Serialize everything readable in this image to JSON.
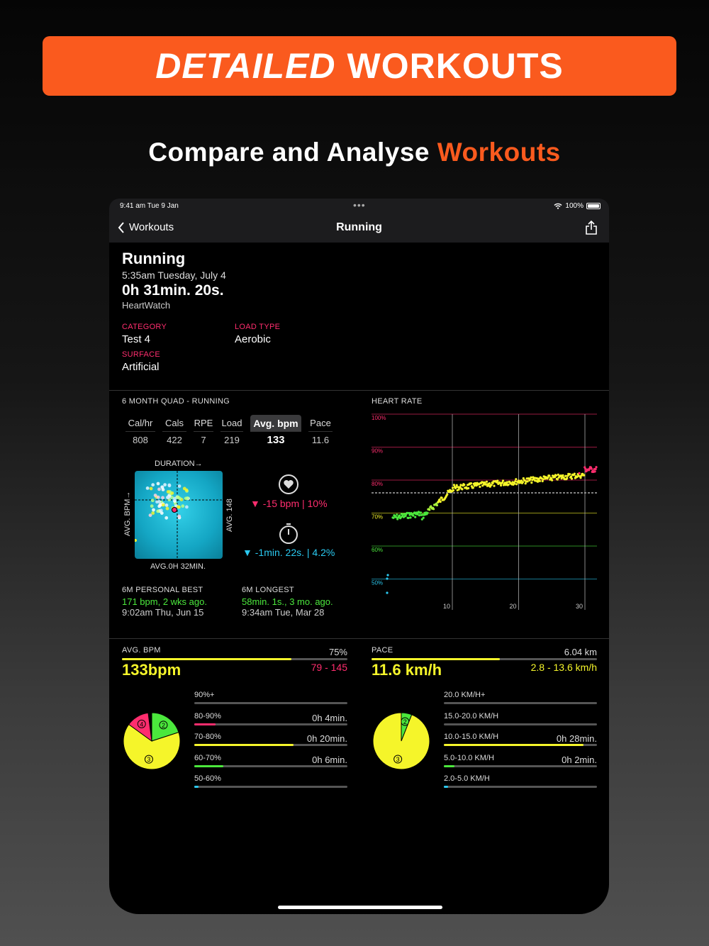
{
  "banner": {
    "italic": "DETAILED",
    "bold": "WORKOUTS"
  },
  "subtitle": {
    "main": "Compare and Analyse",
    "accent": "Workouts"
  },
  "status": {
    "time": "9:41 am  Tue 9 Jan",
    "battery": "100%"
  },
  "nav": {
    "back": "Workouts",
    "title": "Running"
  },
  "workout": {
    "title": "Running",
    "datetime": "5:35am Tuesday, July 4",
    "duration": "0h 31min. 20s.",
    "source": "HeartWatch",
    "category_label": "CATEGORY",
    "category": "Test 4",
    "load_type_label": "LOAD TYPE",
    "load_type": "Aerobic",
    "surface_label": "SURFACE",
    "surface": "Artificial"
  },
  "quad": {
    "title": "6 MONTH QUAD - RUNNING",
    "stats": [
      {
        "label": "Cal/hr",
        "value": "808"
      },
      {
        "label": "Cals",
        "value": "422"
      },
      {
        "label": "RPE",
        "value": "7"
      },
      {
        "label": "Load",
        "value": "219"
      },
      {
        "label": "Avg. bpm",
        "value": "133"
      },
      {
        "label": "Pace",
        "value": "11.6"
      }
    ],
    "duration_label": "DURATION→",
    "y_label": "AVG. BPM→",
    "right_label": "AVG. 148",
    "bottom_label": "AVG.0H 32MIN.",
    "bpm_delta": "▼ -15 bpm | 10%",
    "time_delta": "▼ -1min. 22s. | 4.2%",
    "best_label": "6M PERSONAL BEST",
    "best_value": "171 bpm, 2 wks ago.",
    "best_date": "9:02am Thu, Jun 15",
    "longest_label": "6M LONGEST",
    "longest_value": "58min. 1s., 3 mo. ago.",
    "longest_date": "9:34am Tue, Mar 28"
  },
  "heart_rate": {
    "title": "HEART RATE",
    "zones": [
      "100%",
      "90%",
      "80%",
      "70%",
      "60%",
      "50%"
    ],
    "x_ticks": [
      "10",
      "20",
      "30"
    ]
  },
  "avg_bpm": {
    "label": "AVG. BPM",
    "percent": "75%",
    "value": "133bpm",
    "range": "79 - 145",
    "fill_fraction": 0.75,
    "rows": [
      {
        "label": "90%+",
        "time": "",
        "fill": 0,
        "color": "#ff2d6e"
      },
      {
        "label": "80-90%",
        "time": "0h 4min.",
        "fill": 0.14,
        "color": "#ff2d6e"
      },
      {
        "label": "70-80%",
        "time": "0h 20min.",
        "fill": 0.65,
        "color": "#f5f52a"
      },
      {
        "label": "60-70%",
        "time": "0h 6min.",
        "fill": 0.19,
        "color": "#4be83c"
      },
      {
        "label": "50-60%",
        "time": "",
        "fill": 0.03,
        "color": "#2ac9f0"
      }
    ],
    "pie": [
      {
        "zone": "2",
        "fraction": 0.2,
        "color": "#4be83c"
      },
      {
        "zone": "3",
        "fraction": 0.65,
        "color": "#f5f52a"
      },
      {
        "zone": "4",
        "fraction": 0.13,
        "color": "#ff2d6e"
      }
    ]
  },
  "pace": {
    "label": "PACE",
    "distance": "6.04 km",
    "value": "11.6 km/h",
    "range": "2.8 - 13.6 km/h",
    "fill_fraction": 0.57,
    "rows": [
      {
        "label": "20.0 KM/H+",
        "time": "",
        "fill": 0,
        "color": "#f5f52a"
      },
      {
        "label": "15.0-20.0 KM/H",
        "time": "",
        "fill": 0,
        "color": "#f5f52a"
      },
      {
        "label": "10.0-15.0 KM/H",
        "time": "0h 28min.",
        "fill": 0.91,
        "color": "#f5f52a"
      },
      {
        "label": "5.0-10.0 KM/H",
        "time": "0h 2min.",
        "fill": 0.07,
        "color": "#4be83c"
      },
      {
        "label": "2.0-5.0 KM/H",
        "time": "",
        "fill": 0.03,
        "color": "#2ac9f0"
      }
    ],
    "pie": [
      {
        "zone": "2",
        "fraction": 0.06,
        "color": "#4be83c"
      },
      {
        "zone": "3",
        "fraction": 0.94,
        "color": "#f5f52a"
      }
    ]
  }
}
